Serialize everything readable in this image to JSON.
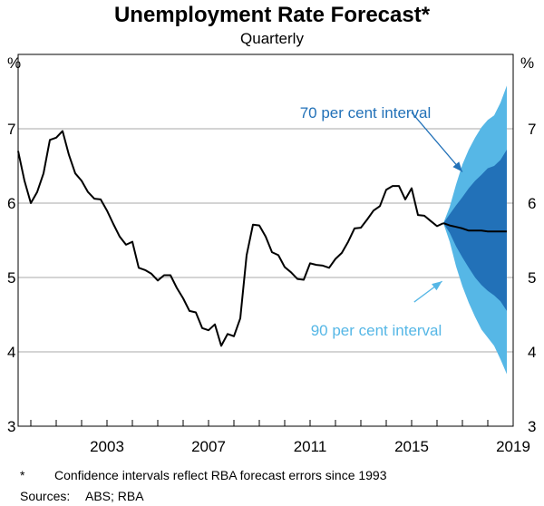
{
  "chart_data": {
    "type": "line",
    "title": "Unemployment Rate Forecast*",
    "subtitle": "Quarterly",
    "y_unit": "%",
    "ylim": [
      3,
      8
    ],
    "yticks": [
      3,
      4,
      5,
      6,
      7
    ],
    "xlim": [
      2000.0,
      2019.5
    ],
    "xticks": [
      2003,
      2007,
      2011,
      2015,
      2019
    ],
    "grid": true,
    "series": [
      {
        "values": [
          [
            2000.0,
            6.7
          ],
          [
            2000.25,
            6.3
          ],
          [
            2000.5,
            6.0
          ],
          [
            2000.75,
            6.15
          ],
          [
            2001.0,
            6.4
          ],
          [
            2001.25,
            6.85
          ],
          [
            2001.5,
            6.88
          ],
          [
            2001.75,
            6.97
          ],
          [
            2002.0,
            6.65
          ],
          [
            2002.25,
            6.4
          ],
          [
            2002.5,
            6.3
          ],
          [
            2002.75,
            6.15
          ],
          [
            2003.0,
            6.06
          ],
          [
            2003.25,
            6.05
          ],
          [
            2003.5,
            5.9
          ],
          [
            2003.75,
            5.72
          ],
          [
            2004.0,
            5.55
          ],
          [
            2004.25,
            5.44
          ],
          [
            2004.5,
            5.48
          ],
          [
            2004.75,
            5.13
          ],
          [
            2005.0,
            5.1
          ],
          [
            2005.25,
            5.05
          ],
          [
            2005.5,
            4.96
          ],
          [
            2005.75,
            5.03
          ],
          [
            2006.0,
            5.03
          ],
          [
            2006.25,
            4.86
          ],
          [
            2006.5,
            4.72
          ],
          [
            2006.75,
            4.55
          ],
          [
            2007.0,
            4.53
          ],
          [
            2007.25,
            4.32
          ],
          [
            2007.5,
            4.29
          ],
          [
            2007.75,
            4.37
          ],
          [
            2008.0,
            4.08
          ],
          [
            2008.25,
            4.24
          ],
          [
            2008.5,
            4.21
          ],
          [
            2008.75,
            4.45
          ],
          [
            2009.0,
            5.3
          ],
          [
            2009.25,
            5.71
          ],
          [
            2009.5,
            5.7
          ],
          [
            2009.75,
            5.55
          ],
          [
            2010.0,
            5.34
          ],
          [
            2010.25,
            5.3
          ],
          [
            2010.5,
            5.14
          ],
          [
            2010.75,
            5.07
          ],
          [
            2011.0,
            4.98
          ],
          [
            2011.25,
            4.97
          ],
          [
            2011.5,
            5.19
          ],
          [
            2011.75,
            5.17
          ],
          [
            2012.0,
            5.16
          ],
          [
            2012.25,
            5.13
          ],
          [
            2012.5,
            5.25
          ],
          [
            2012.75,
            5.33
          ],
          [
            2013.0,
            5.48
          ],
          [
            2013.25,
            5.66
          ],
          [
            2013.5,
            5.67
          ],
          [
            2013.75,
            5.78
          ],
          [
            2014.0,
            5.9
          ],
          [
            2014.25,
            5.96
          ],
          [
            2014.5,
            6.18
          ],
          [
            2014.75,
            6.23
          ],
          [
            2015.0,
            6.23
          ],
          [
            2015.25,
            6.05
          ],
          [
            2015.5,
            6.2
          ],
          [
            2015.75,
            5.84
          ],
          [
            2016.0,
            5.83
          ],
          [
            2016.25,
            5.76
          ],
          [
            2016.5,
            5.69
          ],
          [
            2016.75,
            5.73
          ]
        ]
      },
      {
        "values": [
          [
            2016.75,
            5.73
          ],
          [
            2017.0,
            5.7
          ],
          [
            2017.25,
            5.68
          ],
          [
            2017.5,
            5.66
          ],
          [
            2017.75,
            5.63
          ],
          [
            2018.0,
            5.63
          ],
          [
            2018.25,
            5.63
          ],
          [
            2018.5,
            5.62
          ],
          [
            2018.75,
            5.62
          ],
          [
            2019.0,
            5.62
          ],
          [
            2019.25,
            5.62
          ]
        ]
      }
    ],
    "intervals": [
      {
        "name": "90 per cent interval",
        "color": "#56b7e6",
        "x": [
          2016.75,
          2017.0,
          2017.25,
          2017.5,
          2017.75,
          2018.0,
          2018.25,
          2018.5,
          2018.75,
          2019.0,
          2019.25
        ],
        "upper": [
          5.73,
          5.95,
          6.25,
          6.52,
          6.72,
          6.88,
          7.02,
          7.12,
          7.18,
          7.35,
          7.58
        ],
        "lower": [
          5.73,
          5.48,
          5.15,
          4.88,
          4.66,
          4.47,
          4.3,
          4.19,
          4.08,
          3.9,
          3.7
        ]
      },
      {
        "name": "70 per cent interval",
        "color": "#2271b8",
        "x": [
          2016.75,
          2017.0,
          2017.25,
          2017.5,
          2017.75,
          2018.0,
          2018.25,
          2018.5,
          2018.75,
          2019.0,
          2019.25
        ],
        "upper": [
          5.73,
          5.85,
          5.97,
          6.08,
          6.2,
          6.3,
          6.38,
          6.47,
          6.5,
          6.58,
          6.72
        ],
        "lower": [
          5.73,
          5.6,
          5.42,
          5.27,
          5.13,
          5.0,
          4.9,
          4.82,
          4.76,
          4.68,
          4.55
        ]
      }
    ],
    "annotations": [
      {
        "text": "70 per cent interval",
        "color": "#2271b8",
        "arrow_from": [
          2015.5,
          7.22
        ],
        "arrow_to": [
          2017.5,
          6.42
        ]
      },
      {
        "text": "90 per cent interval",
        "color": "#56b7e6",
        "arrow_from": [
          2015.6,
          4.67
        ],
        "arrow_to": [
          2016.7,
          4.95
        ]
      }
    ]
  },
  "footnote": "Confidence intervals reflect RBA forecast errors since 1993",
  "footnote_marker": "*",
  "sources_label": "Sources:",
  "sources_text": "ABS; RBA"
}
